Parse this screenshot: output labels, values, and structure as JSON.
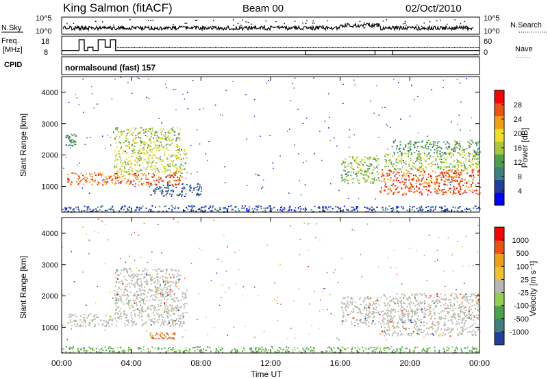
{
  "header": {
    "station": "King Salmon (fitACF)",
    "beam": "Beam 00",
    "date": "02/Oct/2010"
  },
  "nsky_panel": {
    "left_label": "N.Sky",
    "right_label": "N.Search",
    "ticks_left": [
      "10^5",
      "10^0"
    ],
    "ticks_right": [
      "10^5",
      "10^0"
    ]
  },
  "freq_panel": {
    "left_label_line1": "Freq.",
    "left_label_line2": "[MHz]",
    "right_label": "Nave",
    "ticks_left": [
      "18",
      "8"
    ],
    "ticks_right": [
      "60",
      "0"
    ],
    "freq_steps": [
      [
        0.0,
        8
      ],
      [
        1.0,
        18
      ],
      [
        1.3,
        8
      ],
      [
        1.5,
        11
      ],
      [
        1.8,
        8
      ],
      [
        2.1,
        18
      ],
      [
        2.5,
        11
      ],
      [
        2.8,
        18
      ],
      [
        3.1,
        8
      ]
    ],
    "nave_steps": [
      [
        0.0,
        11
      ],
      [
        8.4,
        11
      ],
      [
        8.5,
        11
      ],
      [
        14.0,
        11
      ],
      [
        15.0,
        11
      ]
    ],
    "nave_lower_steps": [
      [
        3.1,
        8
      ],
      [
        14.0,
        8
      ],
      [
        14.0,
        4
      ],
      [
        18.0,
        4
      ],
      [
        18.0,
        8
      ],
      [
        19.0,
        8
      ],
      [
        19.0,
        4
      ],
      [
        24.0,
        4
      ]
    ]
  },
  "cpid": {
    "label": "CPID",
    "program": "normalsound (fast) 157"
  },
  "chart_data": [
    {
      "type": "heatmap",
      "name": "power",
      "ylabel": "Slant Range [km]",
      "yticks": [
        "4000",
        "3000",
        "2000",
        "1000"
      ],
      "ytick_values": [
        4000,
        3000,
        2000,
        1000
      ],
      "ylim": [
        180,
        4500
      ],
      "xlim": [
        0,
        24
      ],
      "colorbar_label": "Power [dB]",
      "colorbar_ticks": [
        "28",
        "24",
        "20",
        "16",
        "12",
        "8",
        "4"
      ],
      "colorbar_colors": [
        "#0000ff",
        "#1e3fa0",
        "#3f7f7f",
        "#4aa24a",
        "#a8c838",
        "#f0e020",
        "#f0a010",
        "#f05010",
        "#ff0000"
      ],
      "echo_regions": [
        {
          "t0": 0.3,
          "t1": 7.0,
          "r0": 1050,
          "r1": 1450,
          "level": 0.85
        },
        {
          "t0": 3.0,
          "t1": 7.2,
          "r0": 1450,
          "r1": 2200,
          "level": 0.55
        },
        {
          "t0": 3.0,
          "t1": 6.8,
          "r0": 2200,
          "r1": 2900,
          "level": 0.5
        },
        {
          "t0": 0.2,
          "t1": 0.8,
          "r0": 2300,
          "r1": 2700,
          "level": 0.3
        },
        {
          "t0": 5.0,
          "t1": 8.0,
          "r0": 700,
          "r1": 1100,
          "level": 0.2
        },
        {
          "t0": 16.0,
          "t1": 18.2,
          "r0": 1100,
          "r1": 2000,
          "level": 0.45
        },
        {
          "t0": 18.2,
          "t1": 24.0,
          "r0": 750,
          "r1": 1550,
          "level": 0.85
        },
        {
          "t0": 18.5,
          "t1": 24.0,
          "r0": 1550,
          "r1": 2100,
          "level": 0.5
        },
        {
          "t0": 19.0,
          "t1": 24.0,
          "r0": 2050,
          "r1": 2500,
          "level": 0.35
        },
        {
          "t0": 0.0,
          "t1": 24.0,
          "r0": 200,
          "r1": 400,
          "level": 0.15
        }
      ]
    },
    {
      "type": "heatmap",
      "name": "velocity",
      "ylabel": "Slant Range [km]",
      "yticks": [
        "4000",
        "3000",
        "2000",
        "1000"
      ],
      "ytick_values": [
        4000,
        3000,
        2000,
        1000
      ],
      "ylim": [
        180,
        4500
      ],
      "xlim": [
        0,
        24
      ],
      "colorbar_label": "Velocity [m s⁻¹]",
      "colorbar_ticks": [
        "1000",
        "500",
        "100",
        "25",
        "-25",
        "-100",
        "-500",
        "-1000"
      ],
      "colorbar_colors": [
        "#1e3fa0",
        "#3f7f7f",
        "#4aa24a",
        "#90d050",
        "#b8b8b0",
        "#f0c030",
        "#f0a010",
        "#f05010",
        "#ff0000"
      ],
      "echo_regions": [
        {
          "t0": 0.3,
          "t1": 7.0,
          "r0": 1050,
          "r1": 1450,
          "level": 0.0
        },
        {
          "t0": 3.0,
          "t1": 7.2,
          "r0": 1450,
          "r1": 2200,
          "level": 0.0
        },
        {
          "t0": 3.0,
          "t1": 6.8,
          "r0": 2200,
          "r1": 2900,
          "level": 0.0
        },
        {
          "t0": 5.0,
          "t1": 6.5,
          "r0": 650,
          "r1": 850,
          "level": -0.6
        },
        {
          "t0": 16.0,
          "t1": 18.2,
          "r0": 1100,
          "r1": 2000,
          "level": 0.0
        },
        {
          "t0": 18.2,
          "t1": 24.0,
          "r0": 750,
          "r1": 1550,
          "level": 0.0
        },
        {
          "t0": 18.5,
          "t1": 24.0,
          "r0": 1550,
          "r1": 2100,
          "level": 0.0
        },
        {
          "t0": 0.0,
          "t1": 24.0,
          "r0": 200,
          "r1": 400,
          "level": 0.4
        }
      ]
    }
  ],
  "xaxis": {
    "label": "Time UT",
    "ticks": [
      "00:00",
      "04:00",
      "08:00",
      "12:00",
      "16:00",
      "20:00",
      "00:00"
    ],
    "tick_values": [
      0,
      4,
      8,
      12,
      16,
      20,
      24
    ]
  }
}
